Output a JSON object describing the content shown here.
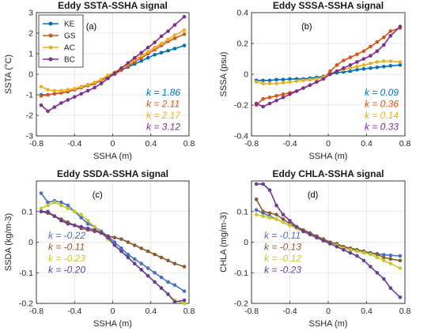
{
  "colors": {
    "KE": "#0072BD",
    "GS": "#D95319",
    "AC": "#EDB120",
    "BC": "#7E2F8E",
    "ke2": "#4472C4",
    "gs2": "#8B5A2B",
    "ac2": "#C8C82C",
    "bc2": "#6A3D9A"
  },
  "chart_data": [
    {
      "type": "line",
      "title": "Eddy SSTA-SSHA signal",
      "panel_label": "(a)",
      "xlabel": "SSHA (m)",
      "ylabel": "SSTA (°C)",
      "xlim": [
        -0.8,
        0.8
      ],
      "ylim": [
        -3,
        3
      ],
      "xticks": [
        "-0.8",
        "-0.4",
        "0",
        "0.4",
        "0.8"
      ],
      "yticks": [
        "-3",
        "-2",
        "-1",
        "0",
        "1",
        "2",
        "3"
      ],
      "grid": true,
      "legend": {
        "position": "top-left",
        "entries": [
          "KE",
          "GS",
          "AC",
          "BC"
        ]
      },
      "x": [
        -0.75,
        -0.68,
        -0.61,
        -0.54,
        -0.47,
        -0.4,
        -0.33,
        -0.26,
        -0.19,
        -0.12,
        -0.05,
        0.02,
        0.09,
        0.16,
        0.23,
        0.3,
        0.37,
        0.44,
        0.51,
        0.58,
        0.65,
        0.75
      ],
      "series": [
        {
          "name": "KE",
          "color": "#0072BD",
          "values": [
            -1.0,
            -1.0,
            -0.95,
            -0.9,
            -0.85,
            -0.75,
            -0.65,
            -0.55,
            -0.45,
            -0.3,
            -0.1,
            0.05,
            0.2,
            0.35,
            0.5,
            0.65,
            0.8,
            0.95,
            1.05,
            1.15,
            1.25,
            1.4
          ]
        },
        {
          "name": "GS",
          "color": "#D95319",
          "values": [
            -1.05,
            -1.0,
            -0.95,
            -0.9,
            -0.85,
            -0.75,
            -0.65,
            -0.55,
            -0.45,
            -0.3,
            -0.15,
            0.0,
            0.2,
            0.4,
            0.6,
            0.8,
            1.0,
            1.2,
            1.4,
            1.6,
            1.75,
            1.95
          ]
        },
        {
          "name": "AC",
          "color": "#EDB120",
          "values": [
            -0.6,
            -0.75,
            -0.8,
            -0.8,
            -0.75,
            -0.7,
            -0.6,
            -0.5,
            -0.4,
            -0.25,
            -0.05,
            0.1,
            0.3,
            0.5,
            0.7,
            0.9,
            1.1,
            1.3,
            1.5,
            1.7,
            1.9,
            2.15
          ]
        },
        {
          "name": "BC",
          "color": "#7E2F8E",
          "values": [
            -1.5,
            -1.8,
            -1.6,
            -1.4,
            -1.25,
            -1.1,
            -0.95,
            -0.8,
            -0.65,
            -0.45,
            -0.2,
            0.05,
            0.3,
            0.55,
            0.8,
            1.05,
            1.3,
            1.55,
            1.85,
            2.1,
            2.4,
            2.8
          ]
        }
      ],
      "annotations": [
        {
          "text": "k = 1.86",
          "color": "#0072BD"
        },
        {
          "text": "k = 2.11",
          "color": "#D95319"
        },
        {
          "text": "k = 2.17",
          "color": "#EDB120"
        },
        {
          "text": "k = 3.12",
          "color": "#7E2F8E"
        }
      ]
    },
    {
      "type": "line",
      "title": "Eddy SSSA-SSHA signal",
      "panel_label": "(b)",
      "xlabel": "SSHA (m)",
      "ylabel": "SSSA (psu)",
      "xlim": [
        -0.8,
        0.8
      ],
      "ylim": [
        -0.4,
        0.4
      ],
      "xticks": [
        "-0.8",
        "-0.4",
        "0",
        "0.4",
        "0.8"
      ],
      "yticks": [
        "-0.4",
        "-0.2",
        "0",
        "0.2",
        "0.4"
      ],
      "grid": true,
      "x": [
        -0.75,
        -0.68,
        -0.61,
        -0.54,
        -0.47,
        -0.4,
        -0.33,
        -0.26,
        -0.19,
        -0.12,
        -0.05,
        0.02,
        0.09,
        0.16,
        0.23,
        0.3,
        0.37,
        0.44,
        0.51,
        0.58,
        0.65,
        0.75
      ],
      "series": [
        {
          "name": "KE",
          "color": "#0072BD",
          "values": [
            -0.04,
            -0.04,
            -0.04,
            -0.035,
            -0.035,
            -0.03,
            -0.03,
            -0.03,
            -0.025,
            -0.02,
            -0.015,
            0.0,
            0.01,
            0.015,
            0.02,
            0.03,
            0.035,
            0.04,
            0.045,
            0.05,
            0.055,
            0.06
          ]
        },
        {
          "name": "GS",
          "color": "#D95319",
          "values": [
            -0.2,
            -0.16,
            -0.15,
            -0.14,
            -0.13,
            -0.12,
            -0.11,
            -0.09,
            -0.07,
            -0.05,
            -0.03,
            0.02,
            0.06,
            0.09,
            0.11,
            0.13,
            0.15,
            0.18,
            0.21,
            0.24,
            0.28,
            0.3
          ]
        },
        {
          "name": "AC",
          "color": "#EDB120",
          "values": [
            -0.05,
            -0.06,
            -0.06,
            -0.06,
            -0.055,
            -0.05,
            -0.045,
            -0.04,
            -0.035,
            -0.03,
            -0.02,
            0.0,
            0.02,
            0.03,
            0.04,
            0.05,
            0.06,
            0.07,
            0.08,
            0.085,
            0.085,
            0.08
          ]
        },
        {
          "name": "BC",
          "color": "#7E2F8E",
          "values": [
            -0.19,
            -0.21,
            -0.19,
            -0.17,
            -0.15,
            -0.13,
            -0.11,
            -0.09,
            -0.07,
            -0.05,
            -0.03,
            0.0,
            0.02,
            0.04,
            0.06,
            0.08,
            0.1,
            0.12,
            0.15,
            0.19,
            0.25,
            0.31
          ]
        }
      ],
      "annotations": [
        {
          "text": "k = 0.09",
          "color": "#0072BD"
        },
        {
          "text": "k = 0.36",
          "color": "#D95319"
        },
        {
          "text": "k = 0.14",
          "color": "#EDB120"
        },
        {
          "text": "k = 0.33",
          "color": "#7E2F8E"
        }
      ]
    },
    {
      "type": "line",
      "title": "Eddy SSDA-SSHA signal",
      "panel_label": "(c)",
      "xlabel": "SSHA (m)",
      "ylabel": "SSDA (kg/m-3)",
      "xlim": [
        -0.8,
        0.8
      ],
      "ylim": [
        -0.2,
        0.2
      ],
      "xticks": [
        "-0.8",
        "-0.4",
        "0",
        "0.4",
        "0.8"
      ],
      "yticks": [
        "-0.2",
        "-0.1",
        "0",
        "0.1"
      ],
      "grid": true,
      "x": [
        -0.75,
        -0.68,
        -0.61,
        -0.54,
        -0.47,
        -0.4,
        -0.33,
        -0.26,
        -0.19,
        -0.12,
        -0.05,
        0.02,
        0.09,
        0.16,
        0.23,
        0.3,
        0.37,
        0.44,
        0.51,
        0.58,
        0.65,
        0.75
      ],
      "series": [
        {
          "name": "KE",
          "color": "#4472C4",
          "values": [
            0.16,
            0.13,
            0.135,
            0.13,
            0.12,
            0.1,
            0.08,
            0.06,
            0.05,
            0.035,
            0.02,
            0.0,
            -0.02,
            -0.04,
            -0.055,
            -0.07,
            -0.085,
            -0.1,
            -0.115,
            -0.13,
            -0.14,
            -0.16
          ]
        },
        {
          "name": "",
          "color": "#8B5A2B",
          "values": [
            0.1,
            0.095,
            0.085,
            0.075,
            0.065,
            0.055,
            0.045,
            0.04,
            0.035,
            0.03,
            0.02,
            0.015,
            0.01,
            0.0,
            -0.01,
            -0.02,
            -0.03,
            -0.04,
            -0.05,
            -0.06,
            -0.07,
            -0.08
          ]
        },
        {
          "name": "",
          "color": "#C8C82C",
          "values": [
            0.11,
            0.12,
            0.13,
            0.12,
            0.11,
            0.1,
            0.09,
            0.07,
            0.05,
            0.03,
            0.01,
            -0.01,
            -0.03,
            -0.05,
            -0.07,
            -0.09,
            -0.11,
            -0.13,
            -0.15,
            -0.17,
            -0.19,
            -0.2
          ]
        },
        {
          "name": "BC",
          "color": "#6A3D9A",
          "values": [
            0.1,
            0.1,
            0.085,
            0.07,
            0.06,
            0.055,
            0.05,
            0.045,
            0.04,
            0.03,
            0.015,
            -0.01,
            -0.03,
            -0.05,
            -0.07,
            -0.09,
            -0.11,
            -0.13,
            -0.15,
            -0.17,
            -0.195,
            -0.19
          ]
        }
      ],
      "annotations": [
        {
          "text": "k = -0.22",
          "color": "#4472C4"
        },
        {
          "text": "k = -0.11",
          "color": "#8B5A2B"
        },
        {
          "text": "k = -0.23",
          "color": "#C8C82C"
        },
        {
          "text": "k = -0.20",
          "color": "#6A3D9A"
        }
      ]
    },
    {
      "type": "line",
      "title": "Eddy CHLA-SSHA signal",
      "panel_label": "(d)",
      "xlabel": "SSHA (m)",
      "ylabel": "CHLA (mg/m-3)",
      "xlim": [
        -0.8,
        0.8
      ],
      "ylim": [
        -0.2,
        0.2
      ],
      "xticks": [
        "-0.8",
        "-0.4",
        "0",
        "0.4",
        "0.8"
      ],
      "yticks": [
        "-0.2",
        "-0.1",
        "0",
        "0.1"
      ],
      "grid": true,
      "x": [
        -0.75,
        -0.68,
        -0.61,
        -0.54,
        -0.47,
        -0.4,
        -0.33,
        -0.26,
        -0.19,
        -0.12,
        -0.05,
        0.02,
        0.09,
        0.16,
        0.23,
        0.3,
        0.37,
        0.44,
        0.51,
        0.58,
        0.65,
        0.75
      ],
      "series": [
        {
          "name": "KE",
          "color": "#4472C4",
          "values": [
            0.105,
            0.095,
            0.085,
            0.075,
            0.065,
            0.055,
            0.045,
            0.035,
            0.025,
            0.015,
            0.005,
            -0.005,
            -0.01,
            -0.015,
            -0.02,
            -0.025,
            -0.03,
            -0.035,
            -0.038,
            -0.041,
            -0.043,
            -0.045
          ]
        },
        {
          "name": "",
          "color": "#8B5A2B",
          "values": [
            0.14,
            0.1,
            0.095,
            0.09,
            0.075,
            0.06,
            0.05,
            0.04,
            0.03,
            0.02,
            0.01,
            0.0,
            -0.005,
            -0.015,
            -0.02,
            -0.025,
            -0.03,
            -0.035,
            -0.04,
            -0.05,
            -0.055,
            -0.06
          ]
        },
        {
          "name": "",
          "color": "#C8C82C",
          "values": [
            0.09,
            0.085,
            0.08,
            0.075,
            0.065,
            0.055,
            0.045,
            0.035,
            0.025,
            0.015,
            0.005,
            -0.005,
            -0.01,
            -0.02,
            -0.025,
            -0.03,
            -0.035,
            -0.04,
            -0.05,
            -0.06,
            -0.07,
            -0.085
          ]
        },
        {
          "name": "BC",
          "color": "#6A3D9A",
          "values": [
            0.19,
            0.19,
            0.17,
            0.12,
            0.09,
            0.07,
            0.05,
            0.035,
            0.025,
            0.015,
            0.005,
            -0.005,
            -0.015,
            -0.025,
            -0.035,
            -0.045,
            -0.06,
            -0.08,
            -0.1,
            -0.12,
            -0.15,
            -0.18
          ]
        }
      ],
      "annotations": [
        {
          "text": "k = -0.11",
          "color": "#4472C4"
        },
        {
          "text": "k = -0.13",
          "color": "#8B5A2B"
        },
        {
          "text": "k = -0.12",
          "color": "#C8C82C"
        },
        {
          "text": "k = -0.23",
          "color": "#6A3D9A"
        }
      ]
    }
  ]
}
